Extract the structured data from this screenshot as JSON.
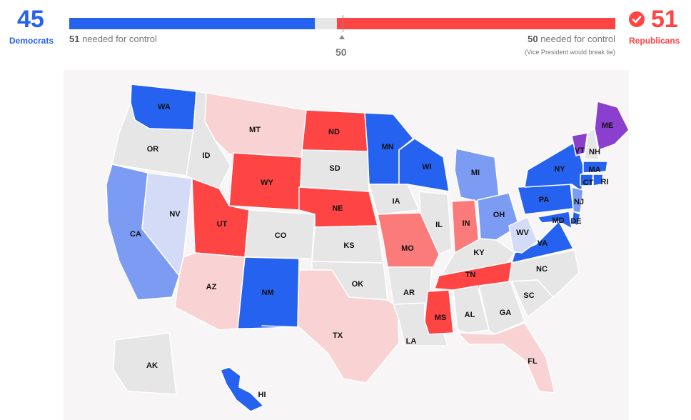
{
  "header": {
    "democrats": {
      "count": "45",
      "label": "Democrats",
      "needed_number": "51",
      "needed_text": " needed for control",
      "color": "#2662f0"
    },
    "republicans": {
      "count": "51",
      "label": "Republicans",
      "needed_number": "50",
      "needed_text": " needed for control",
      "note": "(Vice President would break tie)",
      "color": "#ff4444"
    },
    "midpoint": "50",
    "total_seats": 100
  },
  "legend_colors": {
    "dem_held": "#2662f0",
    "dem_no_race_lean": "#7b9cf2",
    "dem_light": "#d3dbf6",
    "rep_held": "#ff4444",
    "rep_mid": "#fb7a7a",
    "rep_light": "#f9d3d3",
    "independent": "#8a3fcf",
    "no_race": "#e6e6e6"
  },
  "states": [
    {
      "abbr": "WA",
      "fill": "dem_held"
    },
    {
      "abbr": "OR",
      "fill": "no_race"
    },
    {
      "abbr": "CA",
      "fill": "dem_no_race_lean"
    },
    {
      "abbr": "NV",
      "fill": "dem_light"
    },
    {
      "abbr": "ID",
      "fill": "no_race"
    },
    {
      "abbr": "MT",
      "fill": "rep_light"
    },
    {
      "abbr": "WY",
      "fill": "rep_held"
    },
    {
      "abbr": "UT",
      "fill": "rep_held"
    },
    {
      "abbr": "AZ",
      "fill": "rep_light"
    },
    {
      "abbr": "CO",
      "fill": "no_race"
    },
    {
      "abbr": "NM",
      "fill": "dem_held"
    },
    {
      "abbr": "ND",
      "fill": "rep_held"
    },
    {
      "abbr": "SD",
      "fill": "no_race"
    },
    {
      "abbr": "NE",
      "fill": "rep_held"
    },
    {
      "abbr": "KS",
      "fill": "no_race"
    },
    {
      "abbr": "OK",
      "fill": "no_race"
    },
    {
      "abbr": "TX",
      "fill": "rep_light"
    },
    {
      "abbr": "MN",
      "fill": "dem_held"
    },
    {
      "abbr": "IA",
      "fill": "no_race"
    },
    {
      "abbr": "MO",
      "fill": "rep_mid"
    },
    {
      "abbr": "AR",
      "fill": "no_race"
    },
    {
      "abbr": "LA",
      "fill": "no_race"
    },
    {
      "abbr": "WI",
      "fill": "dem_held"
    },
    {
      "abbr": "IL",
      "fill": "no_race"
    },
    {
      "abbr": "MI",
      "fill": "dem_no_race_lean"
    },
    {
      "abbr": "IN",
      "fill": "rep_mid"
    },
    {
      "abbr": "OH",
      "fill": "dem_no_race_lean"
    },
    {
      "abbr": "KY",
      "fill": "no_race"
    },
    {
      "abbr": "TN",
      "fill": "rep_held"
    },
    {
      "abbr": "MS",
      "fill": "rep_held"
    },
    {
      "abbr": "AL",
      "fill": "no_race"
    },
    {
      "abbr": "GA",
      "fill": "no_race"
    },
    {
      "abbr": "FL",
      "fill": "rep_light"
    },
    {
      "abbr": "SC",
      "fill": "no_race"
    },
    {
      "abbr": "NC",
      "fill": "no_race"
    },
    {
      "abbr": "VA",
      "fill": "dem_held"
    },
    {
      "abbr": "WV",
      "fill": "dem_light"
    },
    {
      "abbr": "PA",
      "fill": "dem_held"
    },
    {
      "abbr": "NY",
      "fill": "dem_held"
    },
    {
      "abbr": "VT",
      "fill": "independent"
    },
    {
      "abbr": "NH",
      "fill": "no_race"
    },
    {
      "abbr": "ME",
      "fill": "independent"
    },
    {
      "abbr": "MA",
      "fill": "dem_held"
    },
    {
      "abbr": "CT",
      "fill": "dem_held"
    },
    {
      "abbr": "RI",
      "fill": "dem_held"
    },
    {
      "abbr": "NJ",
      "fill": "dem_no_race_lean"
    },
    {
      "abbr": "DE",
      "fill": "dem_held"
    },
    {
      "abbr": "MD",
      "fill": "dem_held"
    },
    {
      "abbr": "AK",
      "fill": "no_race"
    },
    {
      "abbr": "HI",
      "fill": "dem_held"
    }
  ]
}
